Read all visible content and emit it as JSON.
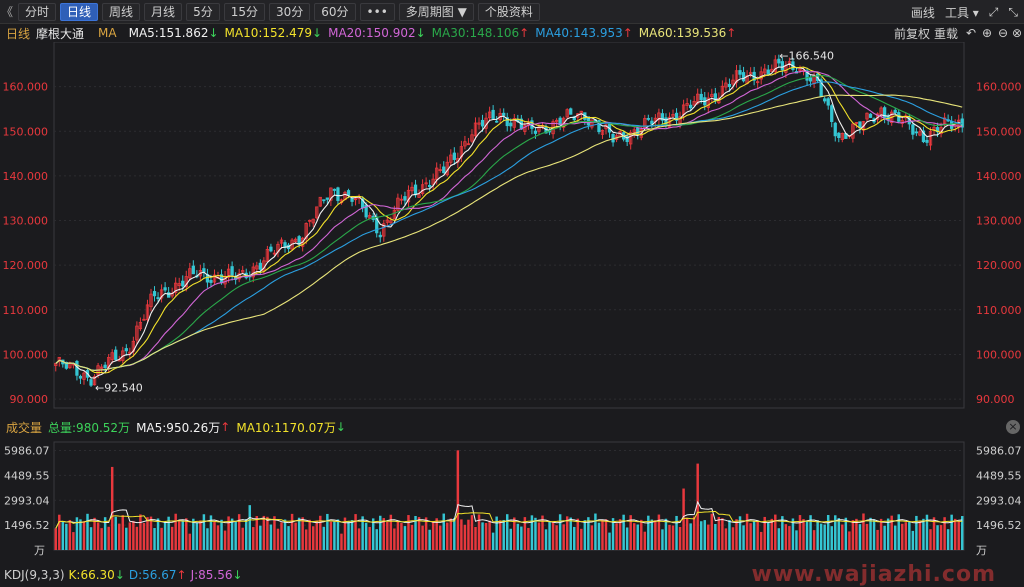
{
  "toolbar": {
    "prev": "《",
    "periods": [
      "分时",
      "日线",
      "周线",
      "月线",
      "5分",
      "15分",
      "30分",
      "60分"
    ],
    "active_index": 1,
    "more": "•••",
    "multi": "多周期图 ▼",
    "profile": "个股资料",
    "draw": "画线",
    "tools": "工具 ▾"
  },
  "info": {
    "period": "日线",
    "name": "摩根大通",
    "ma_label": "MA",
    "ma5": "MA5:151.862",
    "ma10": "MA10:152.479",
    "ma20": "MA20:150.902",
    "ma30": "MA30:148.106",
    "ma40": "MA40:143.953",
    "ma60": "MA60:139.536",
    "adjust": "前复权",
    "overlay": "重载"
  },
  "volume_info": {
    "label": "成交量",
    "total": "总量:980.52万",
    "ma5": "MA5:950.26万",
    "ma10": "MA10:1170.07万"
  },
  "kdj_info": {
    "label": "KDJ(9,3,3)",
    "k": "K:66.30",
    "d": "D:56.67",
    "j": "J:85.56"
  },
  "watermark": "www.wajiazhi.com",
  "colors": {
    "up": "#e8383d",
    "down": "#35c6d3",
    "ma5": "#f2f2f2",
    "ma10": "#f2e22b",
    "ma20": "#d166d6",
    "ma30": "#2aa84a",
    "ma40": "#2b9fe0",
    "ma60": "#e8e47a"
  },
  "chart_data": {
    "type": "candlestick",
    "title": "摩根大通 日线",
    "y_ticks": [
      "160.000",
      "150.000",
      "140.000",
      "130.000",
      "120.000",
      "110.000",
      "100.000",
      "90.000"
    ],
    "y_range": [
      88,
      170
    ],
    "high_label": "166.540",
    "low_label": "92.540",
    "volume_ticks": [
      "5986.07",
      "4489.55",
      "2993.04",
      "1496.52"
    ],
    "volume_unit": "万",
    "volume_range": [
      0,
      6500
    ],
    "close_anchors": [
      [
        0,
        98
      ],
      [
        10,
        95
      ],
      [
        20,
        101
      ],
      [
        28,
        113
      ],
      [
        40,
        118
      ],
      [
        52,
        117
      ],
      [
        60,
        122
      ],
      [
        70,
        127
      ],
      [
        78,
        137
      ],
      [
        84,
        135
      ],
      [
        92,
        128
      ],
      [
        100,
        136
      ],
      [
        110,
        141
      ],
      [
        118,
        150
      ],
      [
        126,
        154
      ],
      [
        134,
        150
      ],
      [
        142,
        152
      ],
      [
        150,
        154
      ],
      [
        158,
        148
      ],
      [
        166,
        151
      ],
      [
        176,
        154
      ],
      [
        186,
        158
      ],
      [
        194,
        162
      ],
      [
        204,
        164
      ],
      [
        210,
        165
      ],
      [
        216,
        160
      ],
      [
        222,
        149
      ],
      [
        228,
        151
      ],
      [
        234,
        155
      ],
      [
        240,
        152
      ],
      [
        246,
        149
      ],
      [
        252,
        151
      ],
      [
        257,
        152
      ]
    ],
    "n_bars": 258,
    "volume_spikes": [
      [
        16,
        5000
      ],
      [
        114,
        6000
      ],
      [
        182,
        5200
      ],
      [
        55,
        2700
      ],
      [
        178,
        3700
      ]
    ]
  }
}
